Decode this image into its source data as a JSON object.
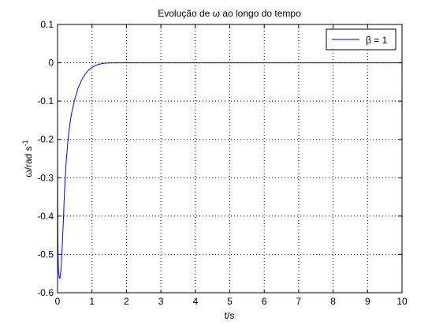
{
  "chart_data": {
    "type": "line",
    "title": "Evolução de ω ao longo do tempo",
    "xlabel": "t/s",
    "ylabel": "ω/rad s",
    "ylabel_superscript": "-1",
    "xlim": [
      0,
      10
    ],
    "ylim": [
      -0.6,
      0.1
    ],
    "xticks": [
      0,
      1,
      2,
      3,
      4,
      5,
      6,
      7,
      8,
      9,
      10
    ],
    "yticks": [
      0.1,
      0,
      -0.1,
      -0.2,
      -0.3,
      -0.4,
      -0.5,
      -0.6
    ],
    "xtick_labels": [
      "0",
      "1",
      "2",
      "3",
      "4",
      "5",
      "6",
      "7",
      "8",
      "9",
      "10"
    ],
    "ytick_labels": [
      "0.1",
      "0",
      "-0.1",
      "-0.2",
      "-0.3",
      "-0.4",
      "-0.5",
      "-0.6"
    ],
    "grid": true,
    "legend_position": "top-right",
    "series": [
      {
        "name": "β = 1",
        "color": "#0000ff",
        "x": [
          0,
          0.01,
          0.02,
          0.03,
          0.05,
          0.07,
          0.1,
          0.13,
          0.17,
          0.2,
          0.25,
          0.3,
          0.35,
          0.4,
          0.5,
          0.6,
          0.7,
          0.8,
          0.9,
          1.0,
          1.1,
          1.2,
          1.3,
          1.4,
          1.5,
          1.7,
          2.0,
          3,
          4,
          5,
          6,
          7,
          8,
          9,
          10
        ],
        "y": [
          -0.25,
          -0.46,
          -0.52,
          -0.545,
          -0.562,
          -0.562,
          -0.54,
          -0.49,
          -0.41,
          -0.34,
          -0.26,
          -0.205,
          -0.165,
          -0.135,
          -0.095,
          -0.065,
          -0.045,
          -0.03,
          -0.019,
          -0.012,
          -0.007,
          -0.004,
          -0.002,
          -0.001,
          -0.0005,
          0,
          0,
          0,
          0,
          0,
          0,
          0,
          0,
          0,
          0
        ]
      }
    ]
  }
}
